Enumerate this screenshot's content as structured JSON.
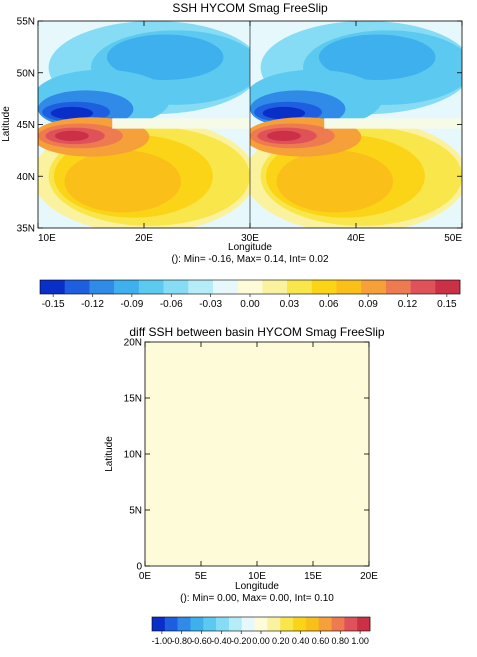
{
  "chart_data": [
    {
      "type": "heatmap",
      "title": "SSH HYCOM Smag FreeSlip",
      "xlabel": "Longitude",
      "ylabel": "Latitude",
      "x_ticks": [
        "10E",
        "20E",
        "30E",
        "40E",
        "50E"
      ],
      "y_ticks": [
        "35N",
        "40N",
        "45N",
        "50N",
        "55N"
      ],
      "xlim": [
        10,
        50
      ],
      "ylim": [
        35,
        55
      ],
      "panels": [
        {
          "name": "left basin",
          "lon_range": [
            10,
            30
          ]
        },
        {
          "name": "right basin",
          "lon_range": [
            30,
            50
          ]
        }
      ],
      "field_description_values": {
        "negative_core_min": -0.16,
        "positive_core_max": 0.14,
        "zero_line_lat": 45
      },
      "stats_text": "(): Min= -0.16, Max= 0.14, Int= 0.02",
      "colorbar": {
        "ticks": [
          "-0.15",
          "-0.12",
          "-0.09",
          "-0.06",
          "-0.03",
          "0.00",
          "0.03",
          "0.06",
          "0.09",
          "0.12",
          "0.15"
        ],
        "range": [
          -0.16,
          0.16
        ]
      }
    },
    {
      "type": "heatmap",
      "title": "diff SSH between basin HYCOM Smag FreeSlip",
      "xlabel": "Longitude",
      "ylabel": "Latitude",
      "x_ticks": [
        "0E",
        "5E",
        "10E",
        "15E",
        "20E"
      ],
      "y_ticks": [
        "0",
        "5N",
        "10N",
        "15N",
        "20N"
      ],
      "xlim": [
        0,
        20
      ],
      "ylim": [
        0,
        20
      ],
      "uniform_value": 0.0,
      "stats_text": "(): Min= 0.00, Max= 0.00, Int= 0.10",
      "colorbar": {
        "ticks": [
          "-1.00",
          "-0.80",
          "-0.60",
          "-0.40",
          "-0.20",
          "0.00",
          "0.20",
          "0.40",
          "0.60",
          "0.80",
          "1.00"
        ],
        "range": [
          -1.1,
          1.1
        ]
      }
    }
  ],
  "palette": [
    "#0a2ec8",
    "#1e5ee0",
    "#2f8ae8",
    "#3fb0ee",
    "#5ccaf0",
    "#86dcf4",
    "#b4ecf8",
    "#e6f8fb",
    "#fdfbd8",
    "#fbf2a0",
    "#f8e64a",
    "#fbd418",
    "#fbbf1a",
    "#f6a03a",
    "#ee7a50",
    "#e0525a",
    "#cc3046"
  ]
}
